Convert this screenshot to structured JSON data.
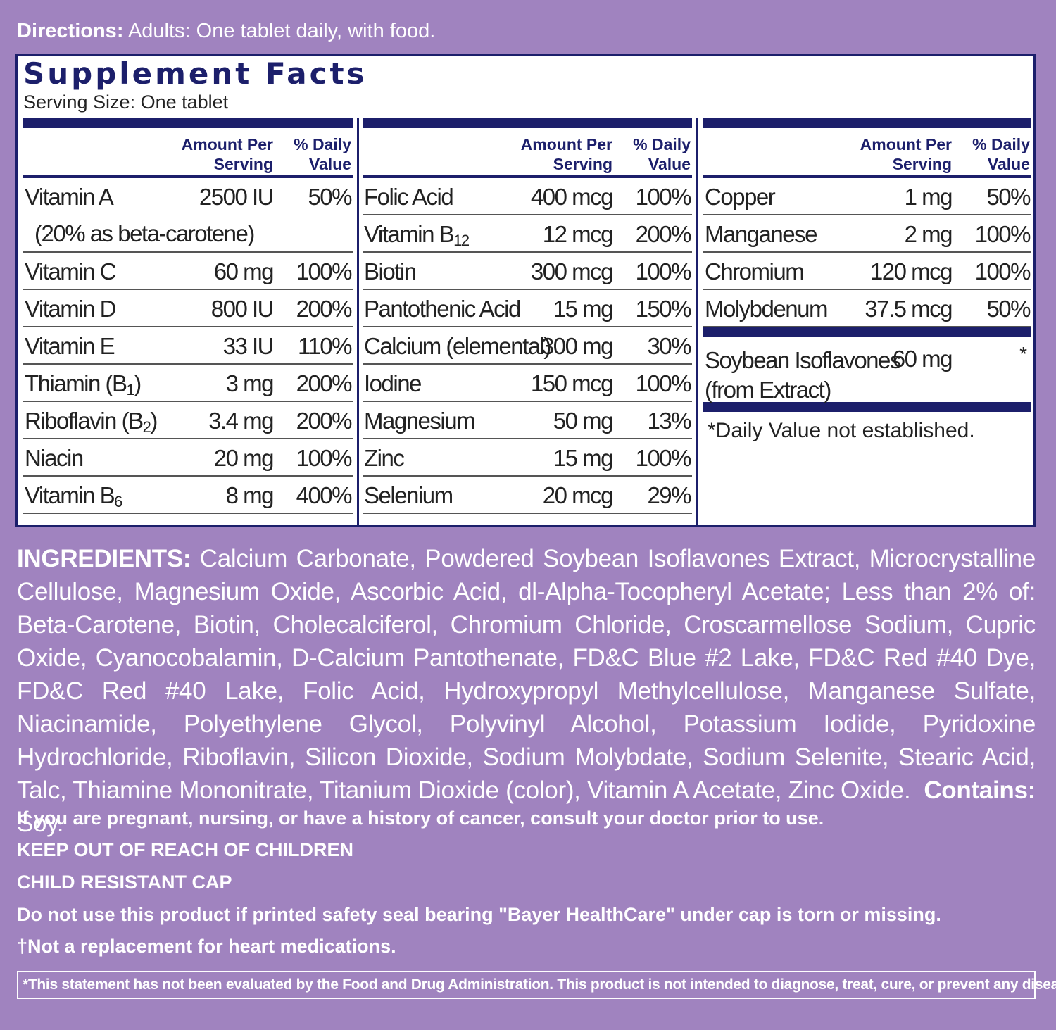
{
  "directions": {
    "label": "Directions:",
    "text": "Adults: One tablet daily, with food."
  },
  "facts": {
    "title": "Supplement Facts",
    "serving": "Serving Size: One tablet",
    "header_amount": "Amount Per Serving",
    "header_dv": "% Daily Value",
    "col1": [
      {
        "name": "Vitamin A",
        "amount": "2500 IU",
        "dv": "50%",
        "note": "(20% as beta-carotene)"
      },
      {
        "name": "Vitamin C",
        "amount": "60 mg",
        "dv": "100%"
      },
      {
        "name": "Vitamin D",
        "amount": "800 IU",
        "dv": "200%"
      },
      {
        "name": "Vitamin E",
        "amount": "33 IU",
        "dv": "110%"
      },
      {
        "name": "Thiamin (B1)",
        "amount": "3 mg",
        "dv": "200%"
      },
      {
        "name": "Riboflavin (B2)",
        "amount": "3.4 mg",
        "dv": "200%"
      },
      {
        "name": "Niacin",
        "amount": "20 mg",
        "dv": "100%"
      },
      {
        "name": "Vitamin B6",
        "amount": "8 mg",
        "dv": "400%"
      }
    ],
    "col2": [
      {
        "name": "Folic Acid",
        "amount": "400 mcg",
        "dv": "100%"
      },
      {
        "name": "Vitamin B12",
        "amount": "12 mcg",
        "dv": "200%"
      },
      {
        "name": "Biotin",
        "amount": "300 mcg",
        "dv": "100%"
      },
      {
        "name": "Pantothenic Acid",
        "amount": "15 mg",
        "dv": "150%"
      },
      {
        "name": "Calcium (elemental)",
        "amount": "300 mg",
        "dv": "30%"
      },
      {
        "name": "Iodine",
        "amount": "150 mcg",
        "dv": "100%"
      },
      {
        "name": "Magnesium",
        "amount": "50 mg",
        "dv": "13%"
      },
      {
        "name": "Zinc",
        "amount": "15 mg",
        "dv": "100%"
      },
      {
        "name": "Selenium",
        "amount": "20 mcg",
        "dv": "29%"
      }
    ],
    "col3": [
      {
        "name": "Copper",
        "amount": "1 mg",
        "dv": "50%"
      },
      {
        "name": "Manganese",
        "amount": "2 mg",
        "dv": "100%"
      },
      {
        "name": "Chromium",
        "amount": "120 mcg",
        "dv": "100%"
      },
      {
        "name": "Molybdenum",
        "amount": "37.5 mcg",
        "dv": "50%"
      }
    ],
    "soy": {
      "name": "Soybean Isoflavones (from Extract)",
      "amount": "60 mg",
      "dv": "*"
    },
    "footnote": "*Daily Value not established."
  },
  "ingredients": {
    "label": "INGREDIENTS:",
    "text": "Calcium Carbonate, Powdered Soybean Isoflavones Extract, Microcrystalline Cellulose, Magnesium Oxide, Ascorbic Acid, dl-Alpha-Tocopheryl Acetate; Less than 2% of: Beta-Carotene, Biotin, Cholecalciferol, Chromium Chloride, Croscarmellose Sodium, Cupric Oxide, Cyanocobalamin, D-Calcium Pantothenate, FD&C Blue #2 Lake, FD&C Red #40 Dye, FD&C Red #40 Lake, Folic Acid, Hydroxypropyl Methylcellulose, Manganese Sulfate, Niacinamide, Polyethylene Glycol, Polyvinyl Alcohol, Potassium Iodide, Pyridoxine Hydrochloride, Riboflavin, Silicon Dioxide, Sodium Molybdate, Sodium Selenite, Stearic Acid, Talc, Thiamine Mononitrate, Titanium Dioxide (color), Vitamin A Acetate, Zinc Oxide.",
    "contains_label": "Contains:",
    "contains_text": "Soy."
  },
  "warnings": {
    "pregnant": "If you are pregnant, nursing, or have a history of cancer, consult your doctor prior to use.",
    "keep_out": "KEEP OUT OF REACH OF CHILDREN",
    "child_cap": "CHILD RESISTANT CAP",
    "seal": "Do not use this product if printed safety seal bearing \"Bayer HealthCare\" under cap is torn or missing.",
    "heart": "†Not a replacement for heart medications."
  },
  "fda": "*This statement has not been evaluated by the Food and Drug Administration. This product is not intended to diagnose, treat, cure, or prevent any disease."
}
